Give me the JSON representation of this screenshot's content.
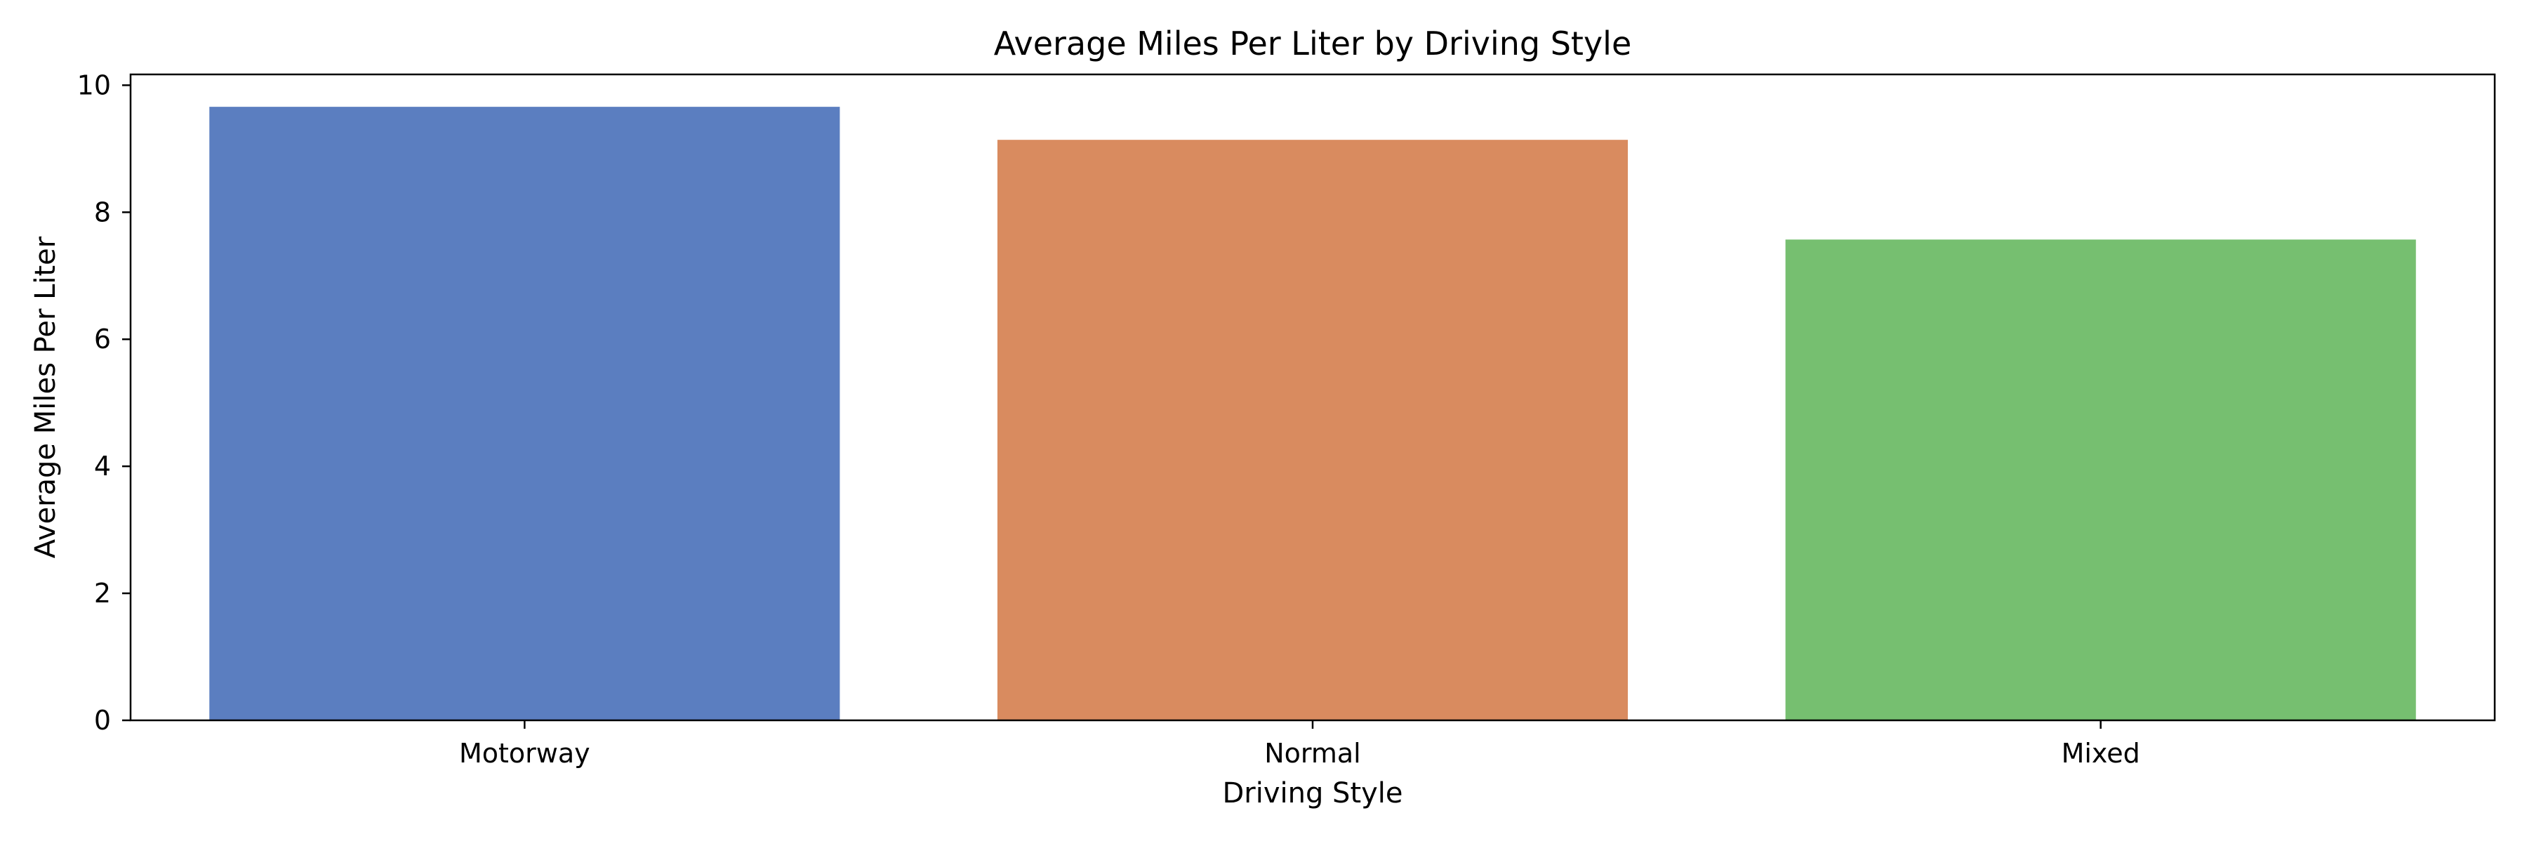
{
  "chart_data": {
    "type": "bar",
    "title": "Average Miles Per Liter by Driving Style",
    "xlabel": "Driving Style",
    "ylabel": "Average Miles Per Liter",
    "categories": [
      "Motorway",
      "Normal",
      "Mixed"
    ],
    "values": [
      9.66,
      9.14,
      7.57
    ],
    "colors": [
      "#5b7ec0",
      "#d98b5f",
      "#76bf70"
    ],
    "ylim": [
      0,
      10.17
    ],
    "yticks": [
      0,
      2,
      4,
      6,
      8,
      10
    ],
    "grid": false,
    "legend": "none"
  }
}
